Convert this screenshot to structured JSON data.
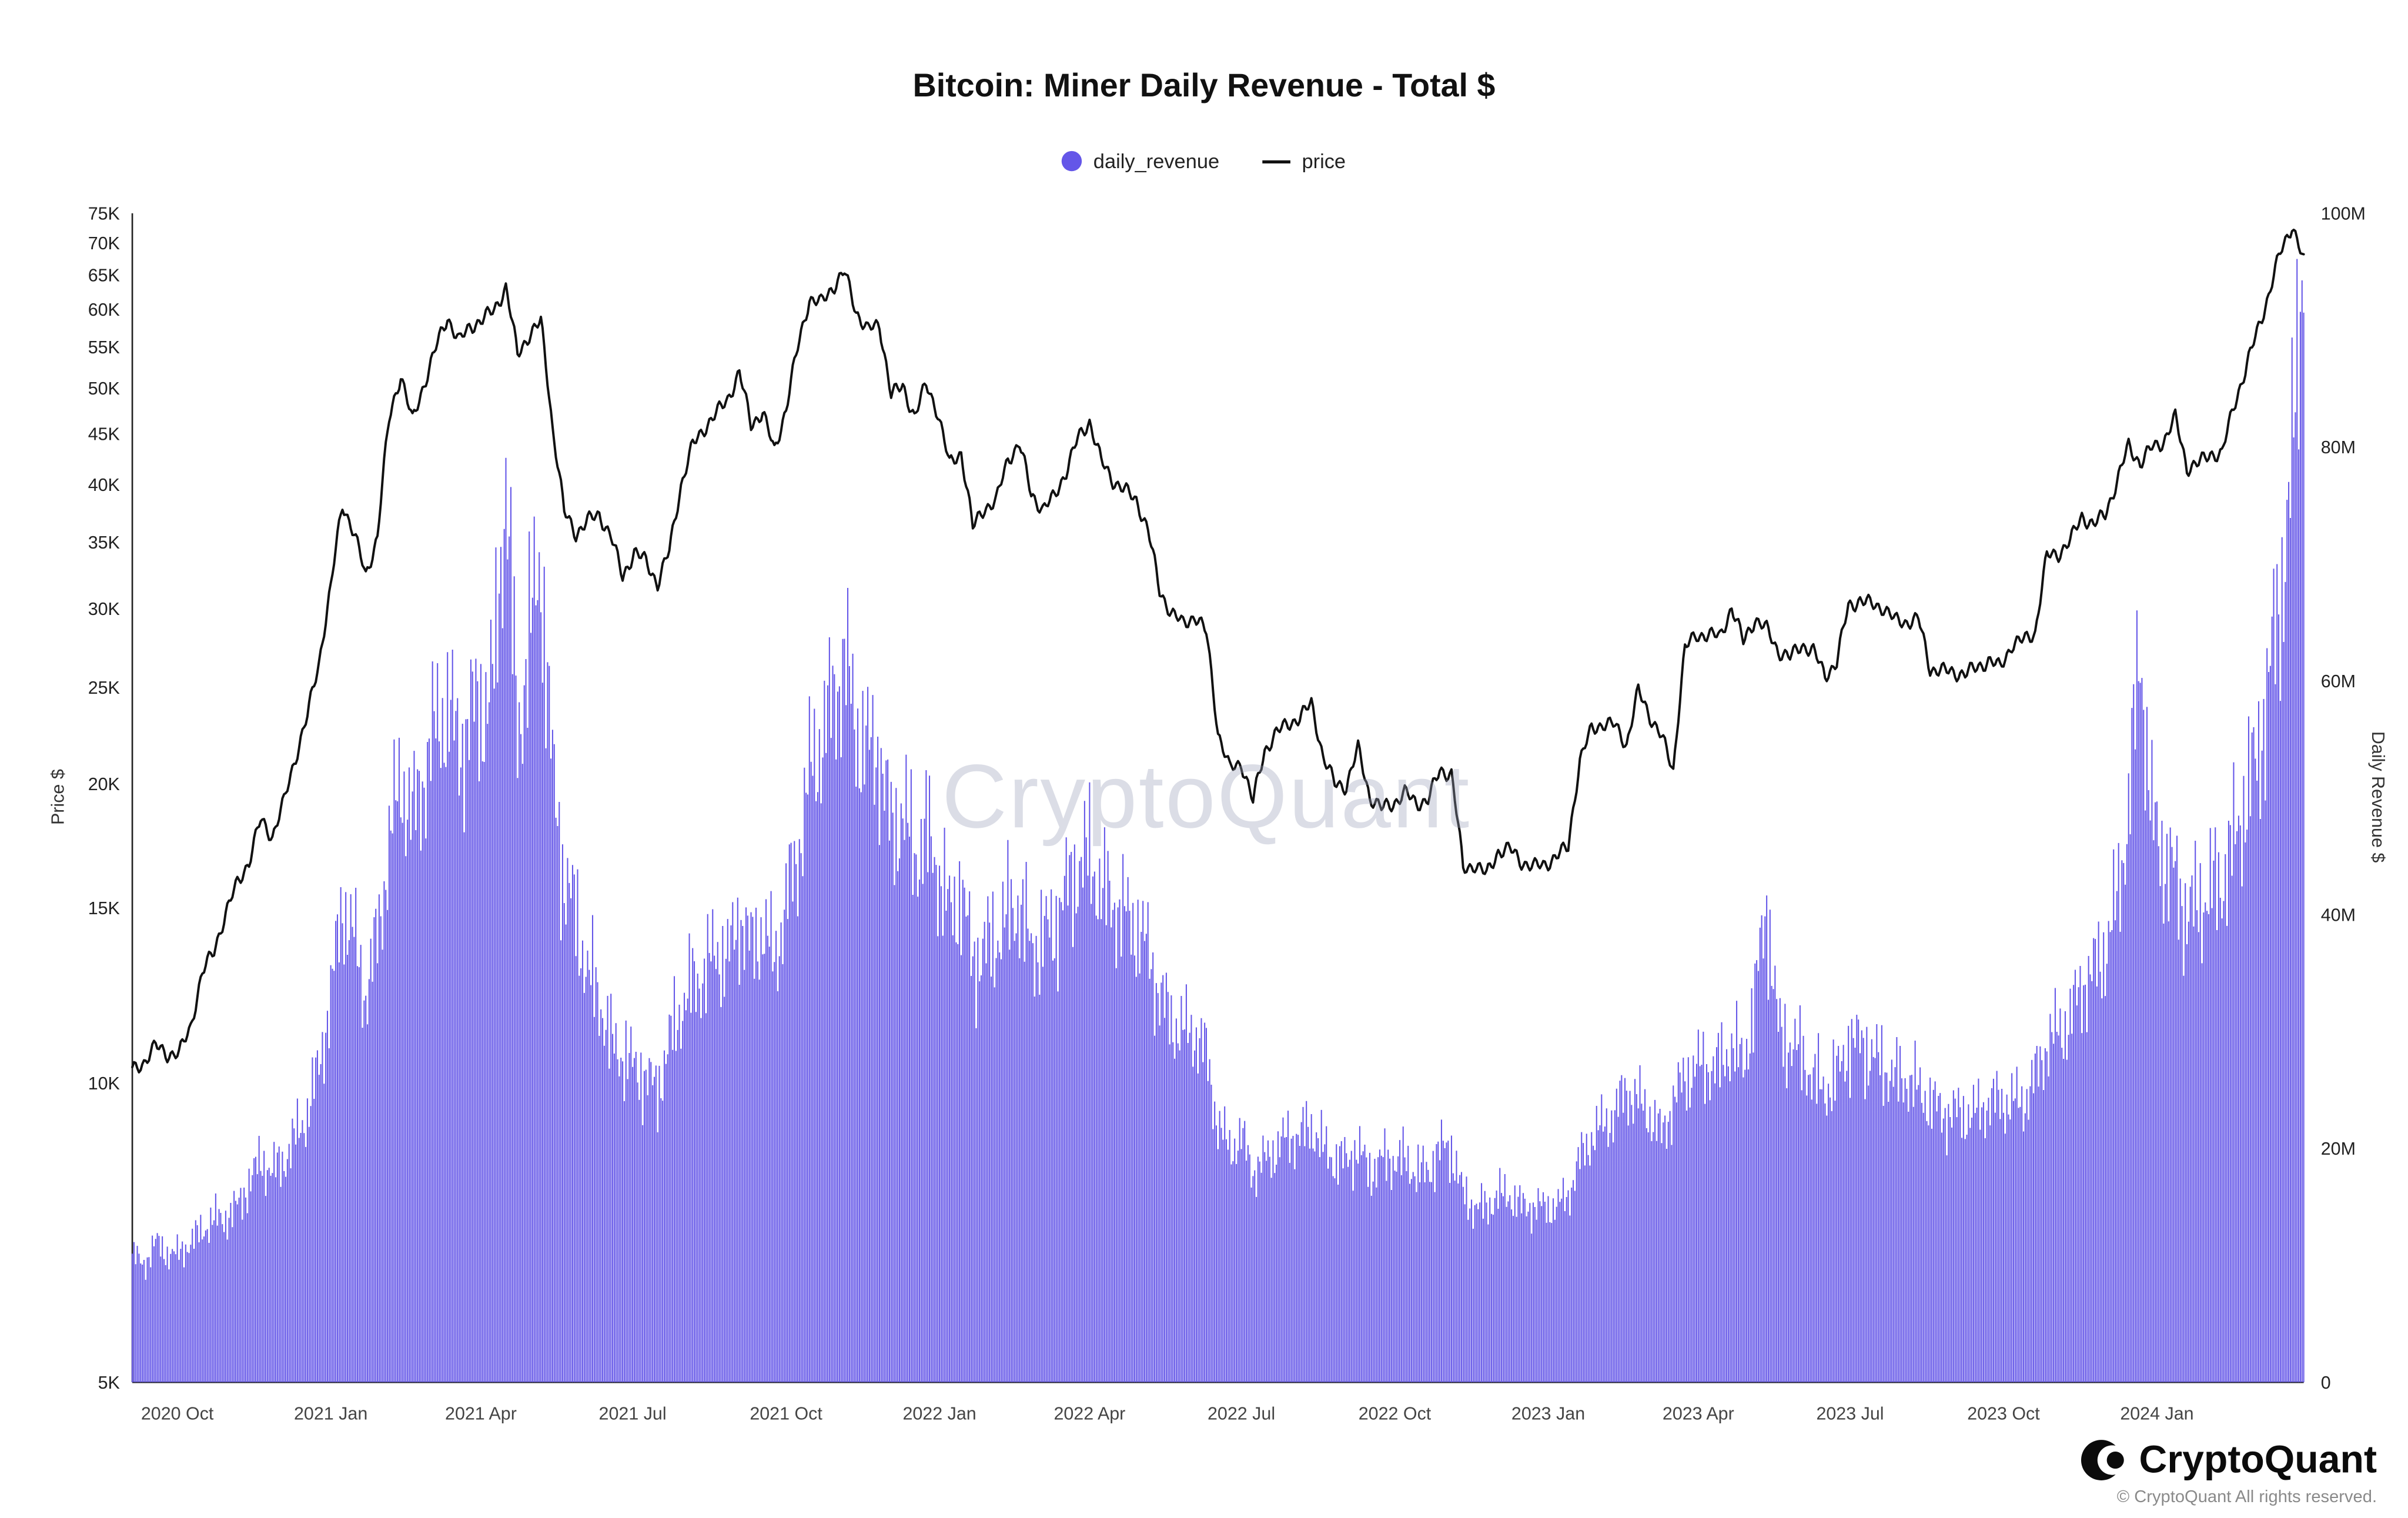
{
  "header": {
    "title": "Bitcoin: Miner Daily Revenue - Total $"
  },
  "legend": {
    "items": [
      {
        "label": "daily_revenue",
        "color": "#6456e8",
        "marker": "dot"
      },
      {
        "label": "price",
        "color": "#111111",
        "marker": "line"
      }
    ]
  },
  "watermark": "CryptoQuant",
  "footer": {
    "brand": "CryptoQuant",
    "copyright": "© CryptoQuant All rights reserved."
  },
  "chart_data": {
    "type": "bar+line",
    "title": "Bitcoin: Miner Daily Revenue - Total $",
    "start_date": "2020-09-04",
    "interval_days": 7,
    "grid": false,
    "legend_position": "top-center",
    "x_tick_labels": [
      "2020 Oct",
      "2021 Jan",
      "2021 Apr",
      "2021 Jul",
      "2021 Oct",
      "2022 Jan",
      "2022 Apr",
      "2022 Jul",
      "2022 Oct",
      "2023 Jan",
      "2023 Apr",
      "2023 Jul",
      "2023 Oct",
      "2024 Jan"
    ],
    "left_axis": {
      "label": "Price $",
      "scale": "log",
      "unit": "USD (thousands)",
      "min": 5,
      "max": 75,
      "ticks": [
        {
          "v": 5,
          "t": "5K"
        },
        {
          "v": 10,
          "t": "10K"
        },
        {
          "v": 15,
          "t": "15K"
        },
        {
          "v": 20,
          "t": "20K"
        },
        {
          "v": 25,
          "t": "25K"
        },
        {
          "v": 30,
          "t": "30K"
        },
        {
          "v": 35,
          "t": "35K"
        },
        {
          "v": 40,
          "t": "40K"
        },
        {
          "v": 45,
          "t": "45K"
        },
        {
          "v": 50,
          "t": "50K"
        },
        {
          "v": 55,
          "t": "55K"
        },
        {
          "v": 60,
          "t": "60K"
        },
        {
          "v": 65,
          "t": "65K"
        },
        {
          "v": 70,
          "t": "70K"
        },
        {
          "v": 75,
          "t": "75K"
        }
      ]
    },
    "right_axis": {
      "label": "Daily Revenue $",
      "scale": "linear",
      "unit": "USD (millions)",
      "min": 0,
      "max": 100,
      "ticks": [
        {
          "v": 0,
          "t": "0"
        },
        {
          "v": 20,
          "t": "20M"
        },
        {
          "v": 40,
          "t": "40M"
        },
        {
          "v": 60,
          "t": "60M"
        },
        {
          "v": 80,
          "t": "80M"
        },
        {
          "v": 100,
          "t": "100M"
        }
      ]
    },
    "series": [
      {
        "name": "daily_revenue",
        "type": "bar",
        "axis": "right",
        "color": "#6456e8",
        "unit": "USD (millions)",
        "values": [
          11,
          10,
          12,
          11,
          11,
          12,
          13,
          14,
          14,
          15,
          17,
          19,
          18,
          19,
          21,
          23,
          27,
          33,
          41,
          38,
          33,
          38,
          46,
          52,
          48,
          52,
          56,
          58,
          54,
          57,
          58,
          60,
          78,
          55,
          64,
          70,
          52,
          43,
          40,
          35,
          33,
          29,
          28,
          27,
          26,
          25,
          29,
          32,
          34,
          35,
          37,
          36,
          40,
          37,
          39,
          36,
          41,
          45,
          52,
          55,
          58,
          62,
          56,
          54,
          54,
          47,
          49,
          45,
          47,
          44,
          40,
          42,
          36,
          37,
          38,
          40,
          41,
          37,
          38,
          39,
          42,
          44,
          45,
          42,
          41,
          40,
          39,
          37,
          33,
          31,
          30,
          30,
          28,
          22,
          20,
          21,
          18,
          19,
          20,
          21,
          21,
          22,
          20,
          19,
          19,
          20,
          18,
          19,
          19,
          19,
          18,
          18,
          20,
          20,
          16,
          15,
          15,
          16,
          16,
          15,
          15,
          15,
          15,
          16,
          19,
          21,
          22,
          23,
          25,
          24,
          23,
          21,
          24,
          26,
          27,
          27,
          27,
          29,
          27,
          33,
          41,
          30,
          29,
          28,
          26,
          25,
          26,
          29,
          29,
          28,
          27,
          26,
          26,
          25,
          24,
          23,
          23,
          23,
          23,
          24,
          24,
          24,
          24,
          26,
          29,
          30,
          31,
          34,
          35,
          37,
          41,
          49,
          63,
          48,
          45,
          43,
          40,
          41,
          42,
          43,
          46,
          50,
          53,
          60,
          67,
          78,
          99
        ]
      },
      {
        "name": "price",
        "type": "line",
        "axis": "left",
        "color": "#111111",
        "unit": "USD (thousands)",
        "values": [
          10.3,
          10.5,
          10.9,
          10.7,
          10.7,
          11.4,
          12.9,
          13.6,
          14.8,
          15.9,
          16.7,
          18.4,
          17.7,
          19.2,
          21.3,
          23.4,
          26.5,
          31.5,
          38.2,
          35.8,
          32.3,
          35.5,
          46.5,
          51.6,
          46.3,
          50.5,
          54.9,
          58.9,
          55.8,
          57.7,
          58.7,
          59.9,
          63.2,
          54.0,
          56.6,
          58.3,
          45.6,
          37.5,
          35.7,
          36.8,
          37.3,
          35.5,
          32.3,
          34.2,
          33.5,
          31.8,
          34.3,
          39.9,
          43.8,
          45.6,
          47.1,
          48.8,
          51.8,
          46.0,
          47.3,
          43.2,
          47.7,
          54.9,
          61.5,
          60.9,
          63.2,
          65.5,
          59.7,
          57.3,
          57.8,
          49.4,
          50.1,
          46.9,
          50.4,
          47.3,
          41.9,
          43.1,
          36.2,
          37.9,
          38.5,
          42.4,
          44.0,
          39.1,
          37.8,
          38.9,
          41.3,
          44.5,
          46.3,
          42.2,
          40.4,
          39.5,
          38.6,
          36.0,
          31.3,
          29.7,
          29.0,
          29.5,
          28.4,
          22.5,
          20.7,
          21.0,
          19.2,
          21.6,
          22.5,
          23.0,
          23.3,
          24.1,
          21.3,
          20.0,
          19.9,
          21.7,
          19.4,
          18.9,
          19.1,
          19.6,
          19.1,
          19.3,
          20.6,
          20.5,
          16.4,
          16.6,
          16.2,
          17.1,
          17.2,
          16.7,
          16.5,
          16.6,
          16.9,
          17.3,
          21.1,
          22.7,
          23.0,
          22.9,
          21.9,
          24.8,
          23.4,
          22.3,
          20.6,
          27.4,
          28.2,
          28.3,
          28.1,
          30.1,
          27.8,
          29.3,
          28.6,
          27.2,
          26.8,
          27.6,
          27.2,
          25.7,
          26.5,
          30.2,
          30.6,
          30.3,
          30.1,
          29.2,
          29.1,
          29.3,
          26.1,
          26.0,
          25.9,
          25.8,
          26.2,
          26.6,
          26.2,
          27.6,
          27.9,
          28.4,
          33.9,
          34.1,
          35.1,
          37.2,
          36.4,
          37.4,
          40.2,
          43.8,
          42.0,
          43.6,
          44.2,
          46.7,
          41.6,
          42.0,
          43.0,
          42.9,
          48.0,
          52.0,
          57.0,
          62.0,
          68.5,
          73.0,
          67.0
        ]
      }
    ]
  }
}
